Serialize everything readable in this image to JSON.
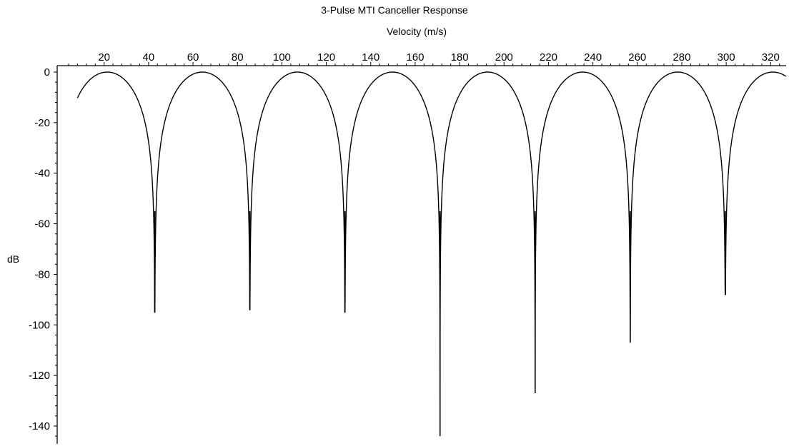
{
  "chart_data": {
    "type": "line",
    "title": "3-Pulse MTI Canceller Response",
    "xlabel": "Velocity (m/s)",
    "ylabel": "dB",
    "xlim": [
      3,
      330
    ],
    "ylim": [
      -147,
      2
    ],
    "x_ticks": [
      20,
      40,
      60,
      80,
      100,
      120,
      140,
      160,
      180,
      200,
      220,
      240,
      260,
      280,
      300,
      320
    ],
    "y_ticks": [
      0,
      -20,
      -40,
      -60,
      -80,
      -100,
      -120,
      -140
    ],
    "x_tick_labels": [
      "20",
      "40",
      "60",
      "80",
      "100",
      "120",
      "140",
      "160",
      "180",
      "200",
      "220",
      "240",
      "260",
      "280",
      "300",
      "320"
    ],
    "y_tick_labels": [
      "0",
      "-20",
      "-40",
      "-60",
      "-80",
      "-100",
      "-120",
      "-140"
    ],
    "x_axis_position": "top",
    "grid": false,
    "legend": "none",
    "blind_speed_period": 42.8,
    "series": [
      {
        "nulls": [
          {
            "x": 42.8,
            "y": -95
          },
          {
            "x": 85.6,
            "y": -94
          },
          {
            "x": 128.4,
            "y": -95
          },
          {
            "x": 171.2,
            "y": -144
          },
          {
            "x": 214.0,
            "y": -127
          },
          {
            "x": 256.8,
            "y": -107
          },
          {
            "x": 299.6,
            "y": -88
          }
        ],
        "peaks": [
          {
            "x": 21.4,
            "y": 0
          },
          {
            "x": 64.2,
            "y": 0
          },
          {
            "x": 107.0,
            "y": 0
          },
          {
            "x": 149.8,
            "y": 0
          },
          {
            "x": 192.6,
            "y": 0
          },
          {
            "x": 235.4,
            "y": 0
          },
          {
            "x": 278.2,
            "y": 0
          },
          {
            "x": 321.0,
            "y": 0
          }
        ],
        "x_start": 8,
        "y_start": -11
      }
    ]
  }
}
